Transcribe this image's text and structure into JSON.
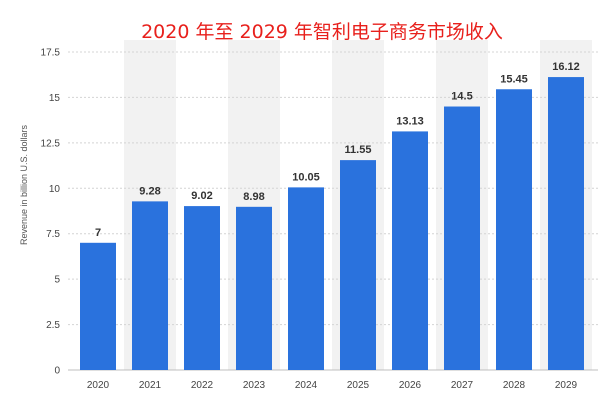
{
  "chart_data": {
    "type": "bar",
    "title": "2020 年至 2029 年智利电子商务市场收入",
    "xlabel": "",
    "ylabel": "Revenue in billion U.S. dollars",
    "categories": [
      "2020",
      "2021",
      "2022",
      "2023",
      "2024",
      "2025",
      "2026",
      "2027",
      "2028",
      "2029"
    ],
    "values": [
      7,
      9.28,
      9.02,
      8.98,
      10.05,
      11.55,
      13.13,
      14.5,
      15.45,
      16.12
    ],
    "value_labels": [
      "7",
      "9.28",
      "9.02",
      "8.98",
      "10.05",
      "11.55",
      "13.13",
      "14.5",
      "15.45",
      "16.12"
    ],
    "ylim": [
      0,
      17.5
    ],
    "yticks": [
      0,
      2.5,
      5,
      7.5,
      10,
      12.5,
      15,
      17.5
    ],
    "ytick_labels": [
      "0",
      "2.5",
      "5",
      "7.5",
      "10",
      "12.5",
      "15",
      "17.5"
    ],
    "grid": true,
    "legend": "none",
    "colors": {
      "bar": "#2a72dd",
      "title": "#e8201c",
      "band": "#f2f2f2"
    }
  }
}
